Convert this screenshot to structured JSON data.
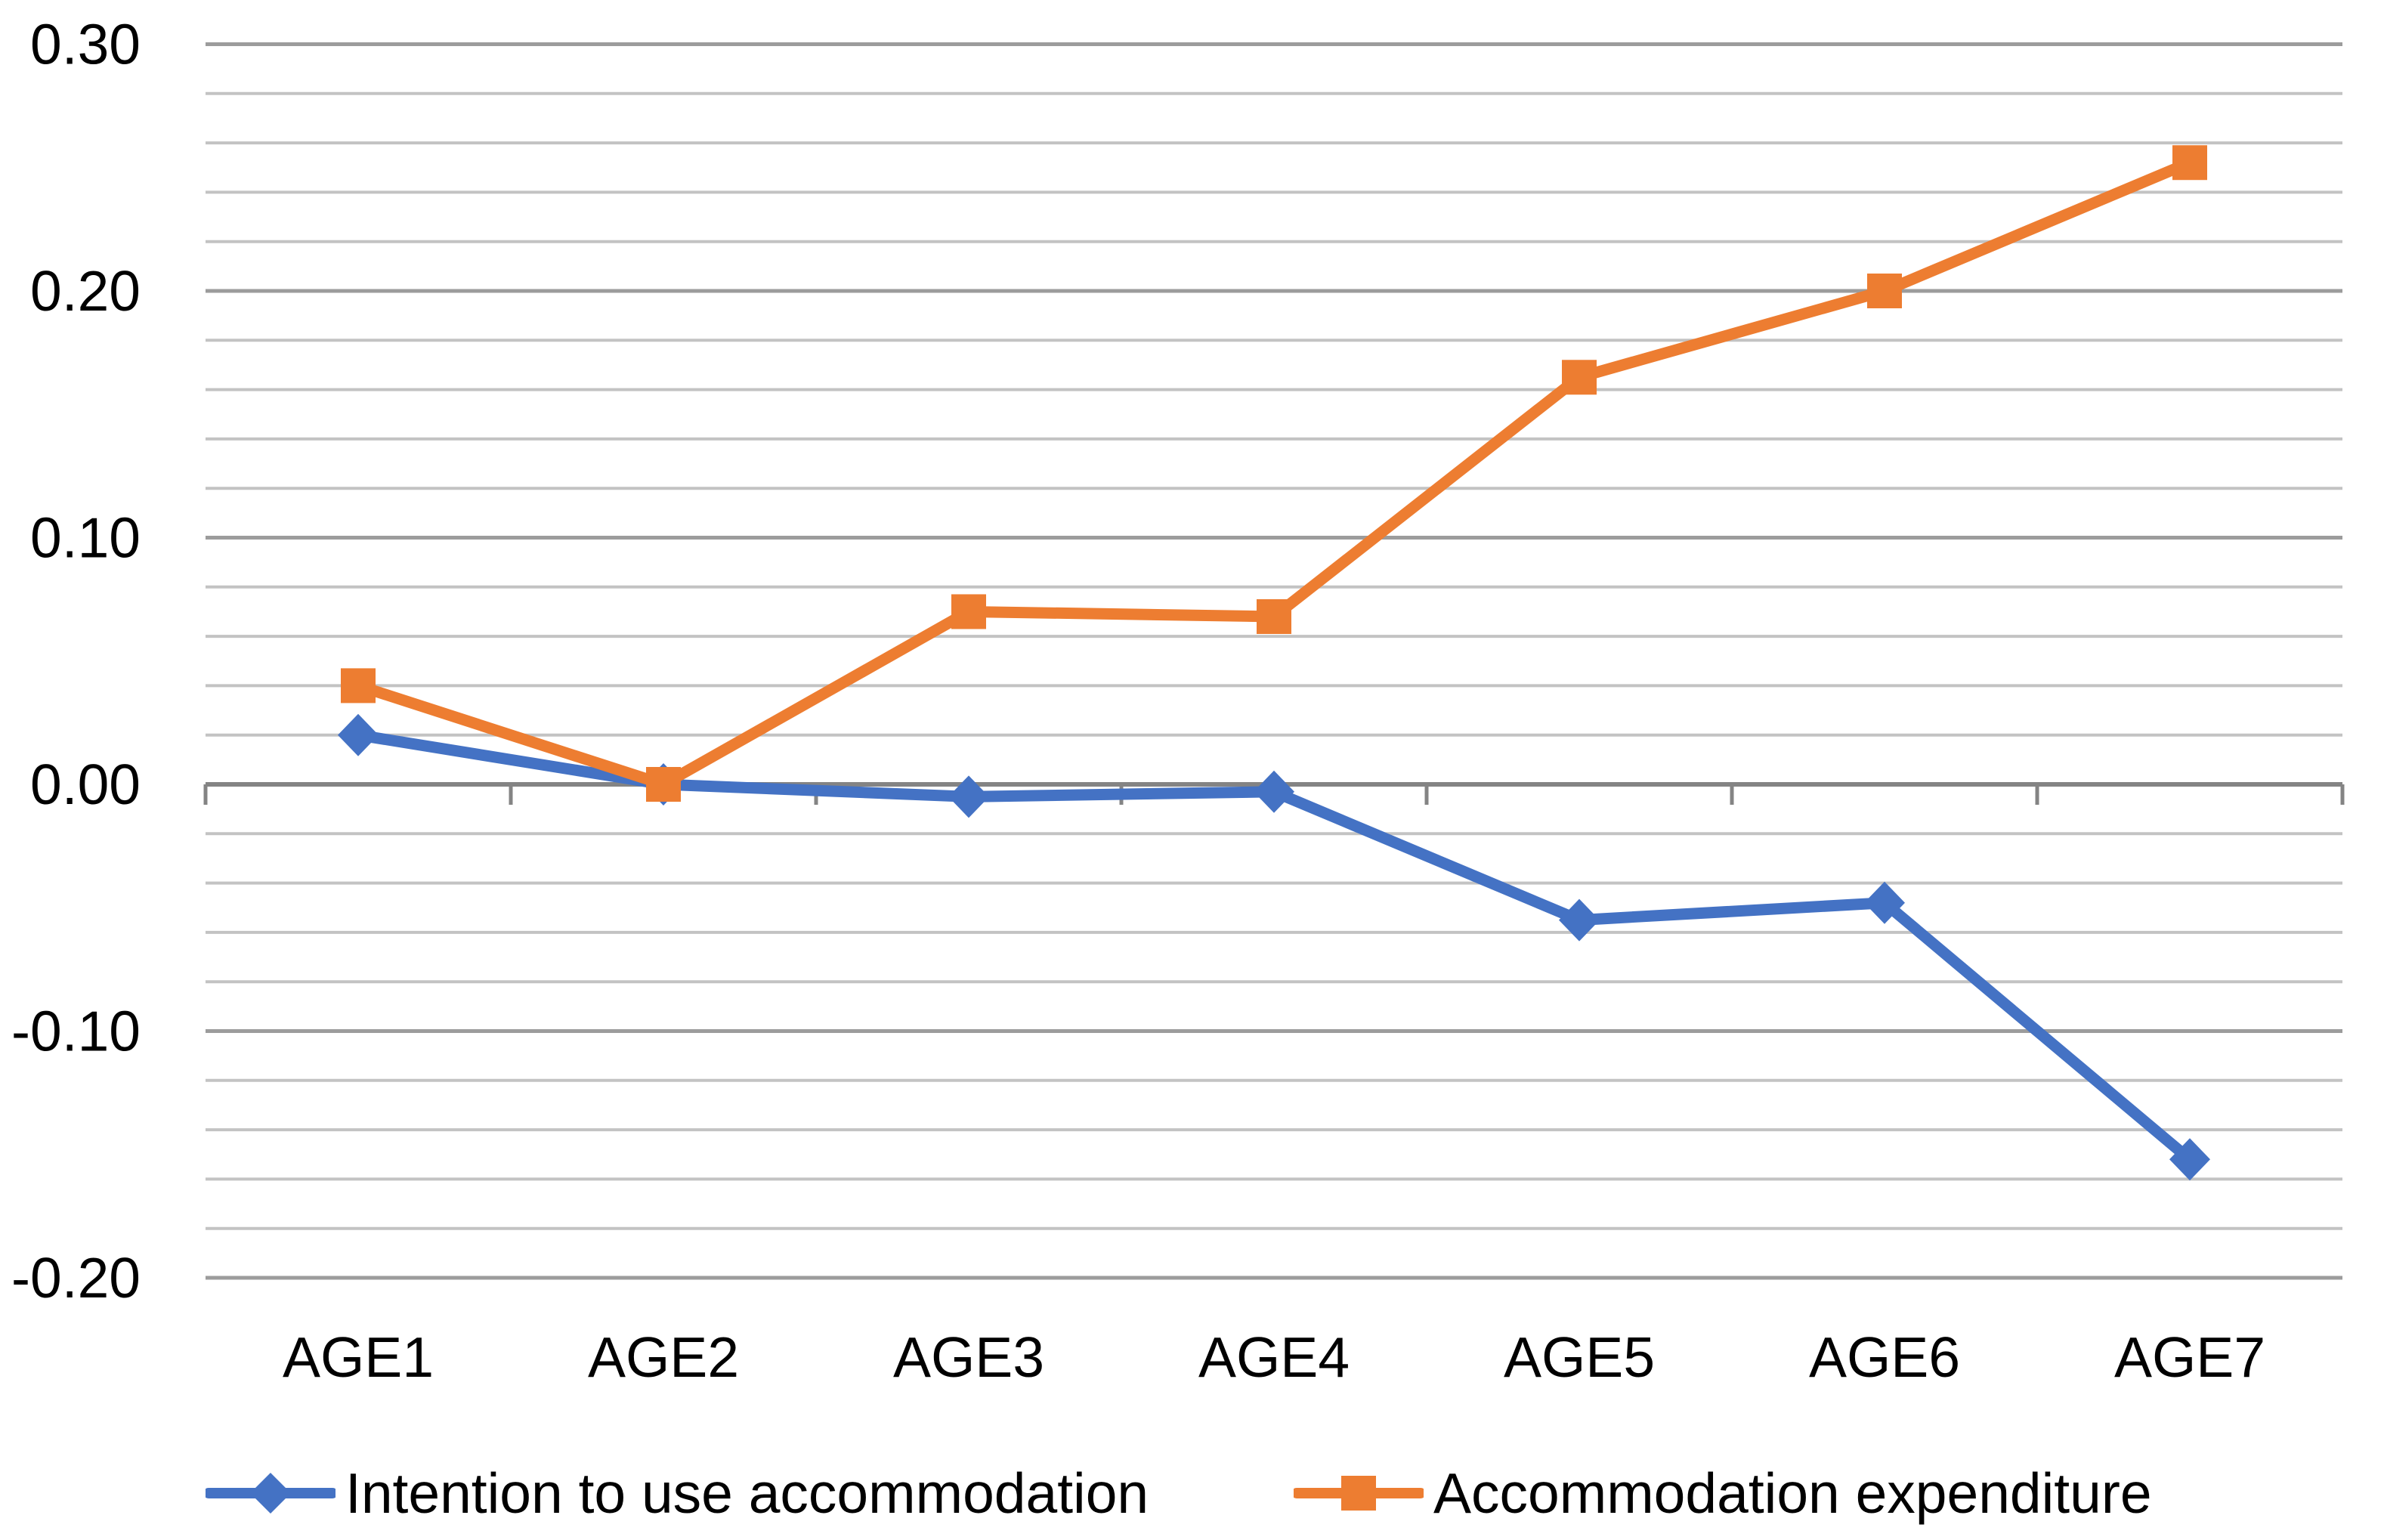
{
  "chart_data": {
    "type": "line",
    "categories": [
      "AGE1",
      "AGE2",
      "AGE3",
      "AGE4",
      "AGE5",
      "AGE6",
      "AGE7"
    ],
    "series": [
      {
        "name": "Intention to use accommodation",
        "color": "#4472C4",
        "marker": "diamond",
        "values": [
          0.02,
          0.0,
          -0.005,
          -0.003,
          -0.055,
          -0.048,
          -0.152
        ]
      },
      {
        "name": "Accommodation expenditure",
        "color": "#ED7D31",
        "marker": "square",
        "values": [
          0.04,
          0.0,
          0.07,
          0.068,
          0.165,
          0.2,
          0.252
        ]
      }
    ],
    "title": "",
    "xlabel": "",
    "ylabel": "",
    "ylim": [
      -0.2,
      0.3
    ],
    "ytick_labels": [
      "0.30",
      "0.20",
      "0.10",
      "0.00",
      "-0.10",
      "-0.20"
    ],
    "ytick_step": 0.1,
    "minor_gridline_step": 0.02,
    "grid": "horizontal",
    "legend_position": "bottom"
  },
  "colors": {
    "series_blue": "#4472C4",
    "series_orange": "#ED7D31",
    "gridline_minor": "#C3C3C3",
    "gridline_major": "#9C9C9C",
    "axis_line": "#848484",
    "text": "#000000",
    "background": "#FFFFFF"
  }
}
